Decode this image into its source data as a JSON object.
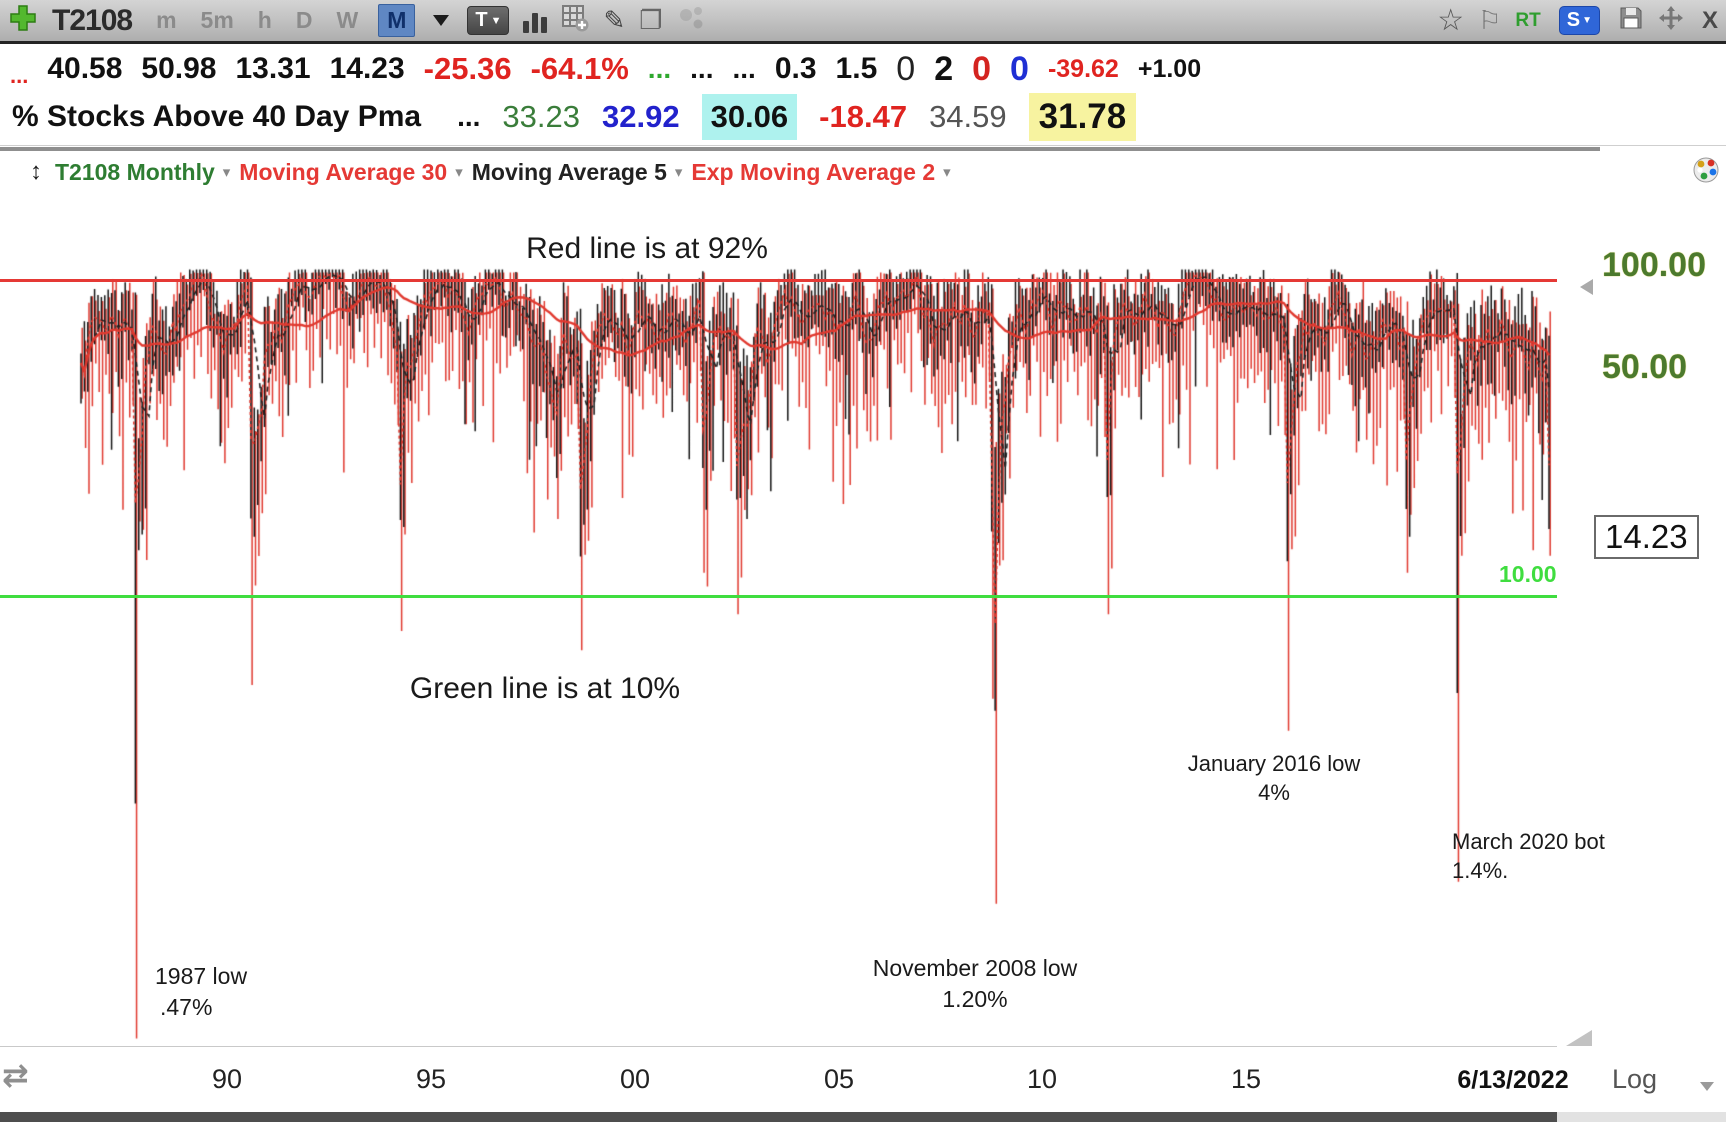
{
  "toolbar": {
    "symbol": "T2108",
    "timeframes": [
      {
        "label": "m",
        "active": false
      },
      {
        "label": "5m",
        "active": false
      },
      {
        "label": "h",
        "active": false
      },
      {
        "label": "D",
        "active": false
      },
      {
        "label": "W",
        "active": false
      },
      {
        "label": "M",
        "active": true
      }
    ],
    "template_label": "T",
    "realtime_label": "RT",
    "strategy_label": "S",
    "close_label": "X",
    "star_glyph": "☆",
    "flag_glyph": "⚐",
    "pencil_glyph": "✎",
    "pages_glyph": "❐"
  },
  "quote_row1": [
    {
      "t": "...",
      "k": "dots-red"
    },
    {
      "t": "40.58",
      "k": "num"
    },
    {
      "t": "50.98",
      "k": "num"
    },
    {
      "t": "13.31",
      "k": "num"
    },
    {
      "t": "14.23",
      "k": "num"
    },
    {
      "t": "-25.36",
      "k": "neg-lg"
    },
    {
      "t": "-64.1%",
      "k": "neg-lg"
    },
    {
      "t": "...",
      "k": "dots-green"
    },
    {
      "t": "...",
      "k": "dots"
    },
    {
      "t": "...",
      "k": "dots"
    },
    {
      "t": "0.3",
      "k": "num"
    },
    {
      "t": "1.5",
      "k": "num"
    },
    {
      "t": "0",
      "k": "zero-thin"
    },
    {
      "t": "2",
      "k": "big"
    },
    {
      "t": "0",
      "k": "zero-red"
    },
    {
      "t": "0",
      "k": "zero-blue"
    },
    {
      "t": "-39.62",
      "k": "neg-sm"
    },
    {
      "t": "+1.00",
      "k": "num-sm"
    }
  ],
  "quote_row2": {
    "label": "% Stocks Above 40 Day Pma",
    "dots": "...",
    "values": [
      {
        "t": "33.23",
        "k": "green"
      },
      {
        "t": "32.92",
        "k": "blue-bold"
      },
      {
        "t": "30.06",
        "k": "hl-cyan"
      },
      {
        "t": "-18.47",
        "k": "red-bold"
      },
      {
        "t": "34.59",
        "k": "gray"
      },
      {
        "t": "31.78",
        "k": "hl-yellow"
      }
    ]
  },
  "chart_header": {
    "items": [
      {
        "label": "T2108 Monthly",
        "color": "green"
      },
      {
        "label": "Moving Average 30",
        "color": "red"
      },
      {
        "label": "Moving Average 5",
        "color": "black"
      },
      {
        "label": "Exp Moving Average 2",
        "color": "red"
      }
    ],
    "caret": "▾"
  },
  "chart_data": {
    "type": "bar",
    "subtype": "high-low oscillator bars, monthly",
    "title": "T2108 - % Stocks Above 40 Day Pma (Monthly)",
    "x_axis": {
      "start": "1986-06",
      "end": "2022-06",
      "tick_labels": [
        "90",
        "95",
        "00",
        "05",
        "10",
        "15"
      ],
      "tick_years": [
        1990,
        1995,
        2000,
        2005,
        2010,
        2015
      ],
      "end_date_label": "6/13/2022",
      "scale_label": "Log"
    },
    "y_axis": {
      "scale": "log",
      "tick_labels": [
        "100.00",
        "50.00"
      ],
      "tick_values": [
        100,
        50
      ],
      "last_value": 14.23,
      "last_value_label": "14.23"
    },
    "reference_lines": [
      {
        "label": "Red line is at 92%",
        "value": 92,
        "color": "#e53935",
        "level_label": ""
      },
      {
        "label": "Green line is at 10%",
        "value": 10,
        "color": "#3fdd3f",
        "level_label": "10.00"
      }
    ],
    "series": [
      {
        "name": "T2108 Monthly",
        "style": "black high-low bars with red high-low bars",
        "colors": [
          "#111111",
          "#e0392f"
        ]
      },
      {
        "name": "Moving Average 30",
        "style": "red solid line",
        "color": "#e0392f"
      },
      {
        "name": "Moving Average 5",
        "style": "black dashed line",
        "color": "#222222"
      },
      {
        "name": "Exp Moving Average 2",
        "style": "red dashed line",
        "color": "#e0392f"
      }
    ],
    "annotations": [
      {
        "line1": "1987 low",
        "line2": ".47%",
        "date": "1987-10",
        "value": 0.47
      },
      {
        "line1": "November 2008 low",
        "line2": "1.20%",
        "date": "2008-11",
        "value": 1.2
      },
      {
        "line1": "January 2016 low",
        "line2": "4%",
        "date": "2016-01",
        "value": 4
      },
      {
        "line1": "March 2020 bot",
        "line2": "1.4%.",
        "date": "2020-03",
        "value": 1.4
      }
    ],
    "notable_lows": [
      {
        "date": "1987-10",
        "value": 0.47
      },
      {
        "date": "1990-08",
        "value": 5.5
      },
      {
        "date": "1994-04",
        "value": 8
      },
      {
        "date": "1998-09",
        "value": 7
      },
      {
        "date": "2001-09",
        "value": 12
      },
      {
        "date": "2002-07",
        "value": 9
      },
      {
        "date": "2008-10",
        "value": 5
      },
      {
        "date": "2008-11",
        "value": 1.2
      },
      {
        "date": "2011-08",
        "value": 9
      },
      {
        "date": "2016-01",
        "value": 4
      },
      {
        "date": "2018-12",
        "value": 12
      },
      {
        "date": "2020-03",
        "value": 1.4
      },
      {
        "date": "2022-06",
        "value": 13.5
      }
    ],
    "render": {
      "seed": 7,
      "last_close": 14.23
    }
  }
}
